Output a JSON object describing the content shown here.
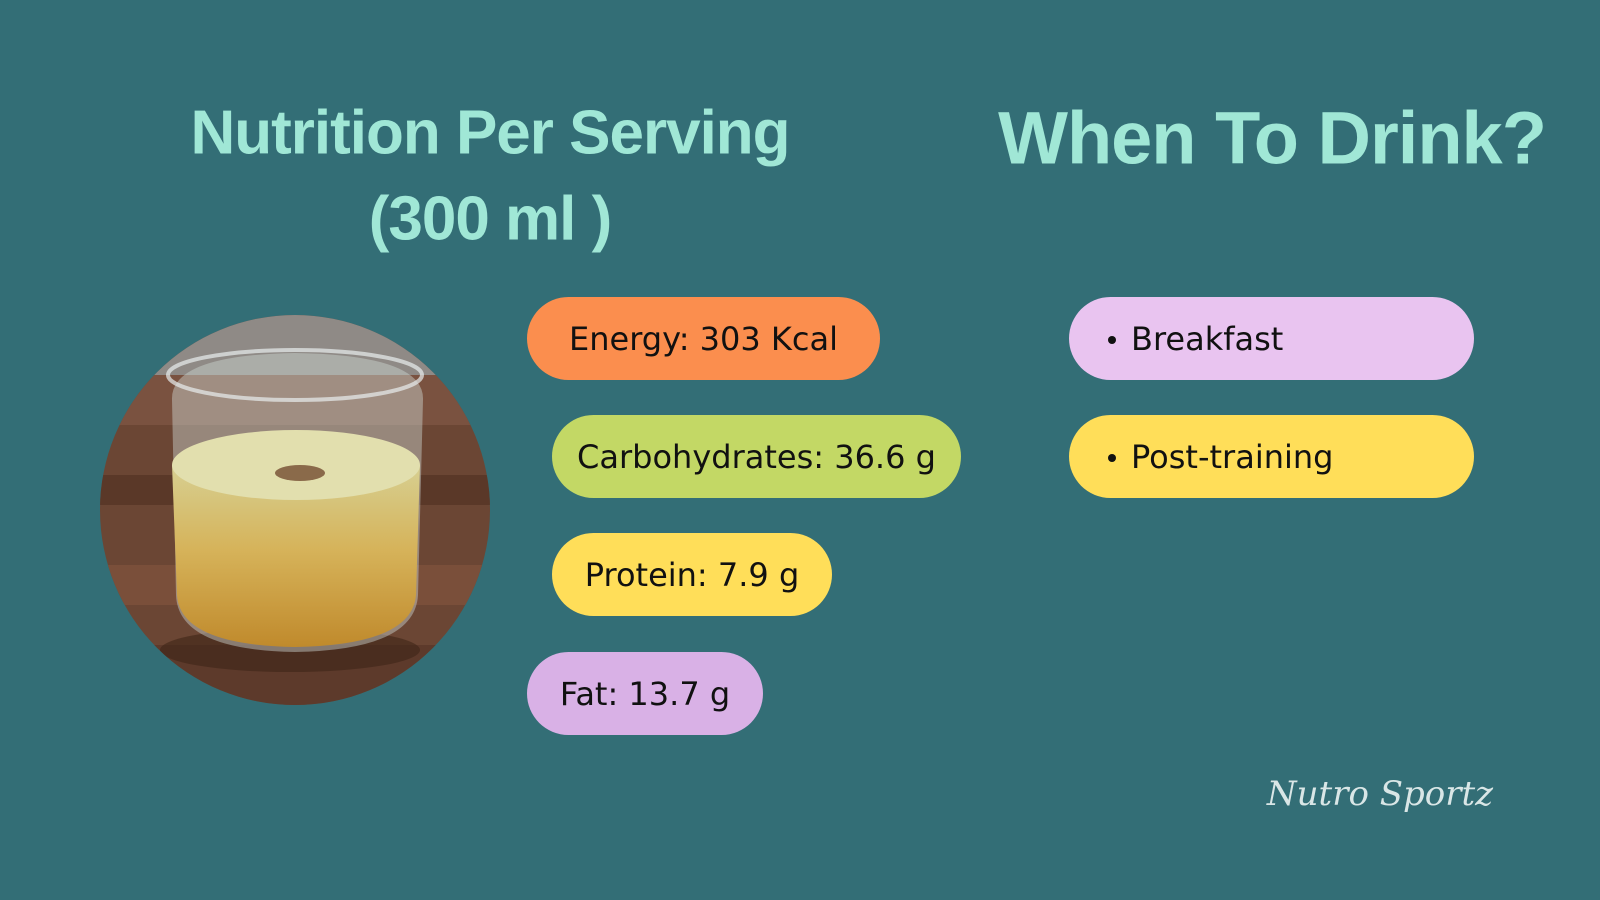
{
  "nutrition": {
    "title_lines": [
      "Nutrition Per Serving",
      "(300 ml )"
    ],
    "items": [
      "Energy: 303 Kcal",
      "Carbohydrates: 36.6 g",
      "Protein: 7.9 g",
      "Fat: 13.7 g"
    ]
  },
  "when": {
    "title": "When To Drink?",
    "items": [
      "Breakfast",
      "Post-training"
    ]
  },
  "brand": "Nutro Sportz"
}
